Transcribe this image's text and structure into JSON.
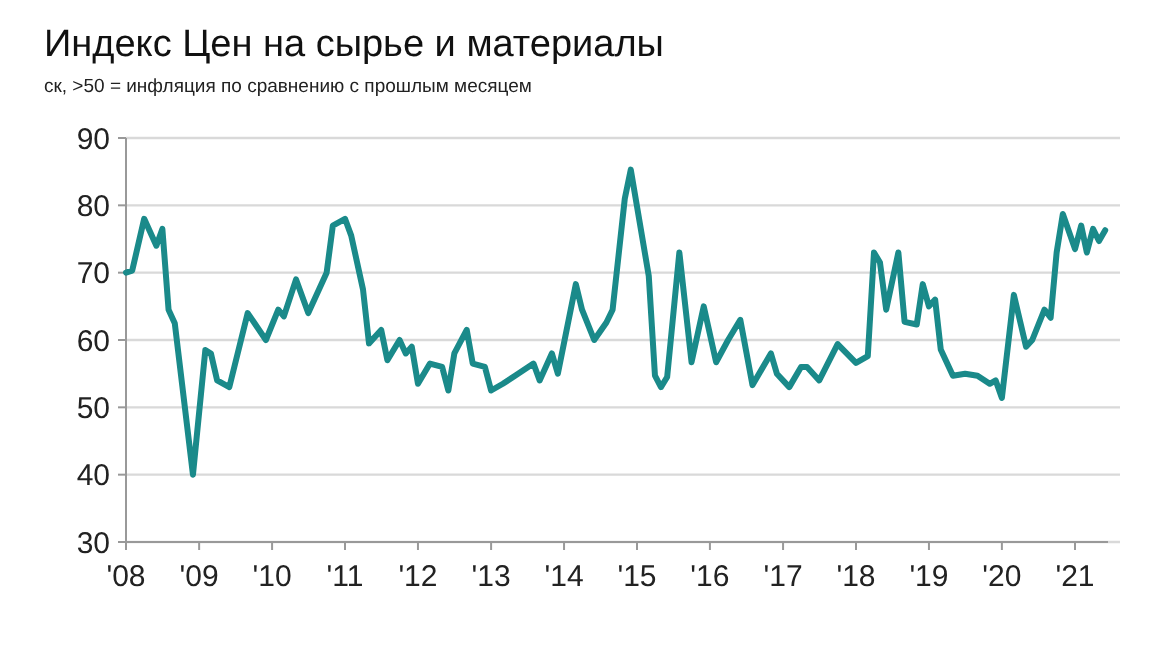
{
  "chart_data": {
    "type": "line",
    "title": "Индекс Цен на сырье и материалы",
    "subtitle": "ск, >50 = инфляция по сравнению с прошлым месяцем",
    "x": [
      "2008-01",
      "2008-02",
      "2008-04",
      "2008-06",
      "2008-07",
      "2008-08",
      "2008-09",
      "2008-12",
      "2009-02",
      "2009-03",
      "2009-04",
      "2009-06",
      "2009-09",
      "2009-12",
      "2010-02",
      "2010-03",
      "2010-05",
      "2010-07",
      "2010-10",
      "2010-11",
      "2011-01",
      "2011-02",
      "2011-04",
      "2011-05",
      "2011-07",
      "2011-08",
      "2011-10",
      "2011-11",
      "2011-12",
      "2012-01",
      "2012-03",
      "2012-05",
      "2012-06",
      "2012-07",
      "2012-09",
      "2012-10",
      "2012-12",
      "2013-01",
      "2013-03",
      "2013-05",
      "2013-08",
      "2013-09",
      "2013-11",
      "2013-12",
      "2014-03",
      "2014-04",
      "2014-06",
      "2014-08",
      "2014-09",
      "2014-11",
      "2014-12",
      "2015-03",
      "2015-04",
      "2015-05",
      "2015-06",
      "2015-08",
      "2015-10",
      "2015-12",
      "2016-02",
      "2016-04",
      "2016-06",
      "2016-08",
      "2016-11",
      "2016-12",
      "2017-02",
      "2017-04",
      "2017-05",
      "2017-07",
      "2017-10",
      "2018-01",
      "2018-03",
      "2018-04",
      "2018-05",
      "2018-06",
      "2018-08",
      "2018-09",
      "2018-11",
      "2018-12",
      "2019-01",
      "2019-02",
      "2019-03",
      "2019-05",
      "2019-07",
      "2019-09",
      "2019-11",
      "2019-12",
      "2020-01",
      "2020-03",
      "2020-05",
      "2020-06",
      "2020-08",
      "2020-09",
      "2020-10",
      "2020-11",
      "2021-01",
      "2021-02",
      "2021-03",
      "2021-04",
      "2021-05",
      "2021-06"
    ],
    "series": [
      {
        "color": "#1a8a8a",
        "values": [
          70,
          70.3,
          78,
          74,
          76.5,
          64.5,
          62.5,
          40,
          58.5,
          58,
          54,
          53,
          64,
          60,
          64.5,
          63.5,
          69,
          64,
          70,
          77,
          78,
          75.5,
          67.5,
          59.5,
          61.5,
          57,
          60,
          58,
          59,
          53.5,
          56.5,
          56,
          52.5,
          58,
          61.5,
          56.5,
          56,
          52.5,
          53.5,
          54.7,
          56.5,
          54,
          58,
          55,
          68.3,
          64.5,
          60,
          62.6,
          64.5,
          81,
          85.3,
          69.5,
          54.7,
          53,
          54.5,
          73,
          56.7,
          65,
          56.7,
          60,
          63,
          53.3,
          58,
          55,
          53,
          56,
          56,
          54,
          59.4,
          56.6,
          57.6,
          73,
          71.5,
          64.5,
          73,
          62.7,
          62.3,
          68.3,
          65,
          66,
          58.6,
          54.7,
          55,
          54.7,
          53.5,
          54,
          51.4,
          66.7,
          59,
          60,
          64.5,
          63.3,
          73,
          78.7,
          73.5,
          77,
          73,
          76.5,
          74.7,
          76.3
        ]
      }
    ],
    "xlim": [
      "2008-01-01",
      "2021-06-15"
    ],
    "xticks": [
      {
        "value": "2008-01-01",
        "label": "'08"
      },
      {
        "value": "2009-01-01",
        "label": "'09"
      },
      {
        "value": "2010-01-01",
        "label": "'10"
      },
      {
        "value": "2011-01-01",
        "label": "'11"
      },
      {
        "value": "2012-01-01",
        "label": "'12"
      },
      {
        "value": "2013-01-01",
        "label": "'13"
      },
      {
        "value": "2014-01-01",
        "label": "'14"
      },
      {
        "value": "2015-01-01",
        "label": "'15"
      },
      {
        "value": "2016-01-01",
        "label": "'16"
      },
      {
        "value": "2017-01-01",
        "label": "'17"
      },
      {
        "value": "2018-01-01",
        "label": "'18"
      },
      {
        "value": "2019-01-01",
        "label": "'19"
      },
      {
        "value": "2020-01-01",
        "label": "'20"
      },
      {
        "value": "2021-01-01",
        "label": "'21"
      }
    ],
    "ylim": [
      30,
      90
    ],
    "yticks": [
      30,
      40,
      50,
      60,
      70,
      80,
      90
    ],
    "grid": "y",
    "marker": "none",
    "line_style": "solid"
  }
}
